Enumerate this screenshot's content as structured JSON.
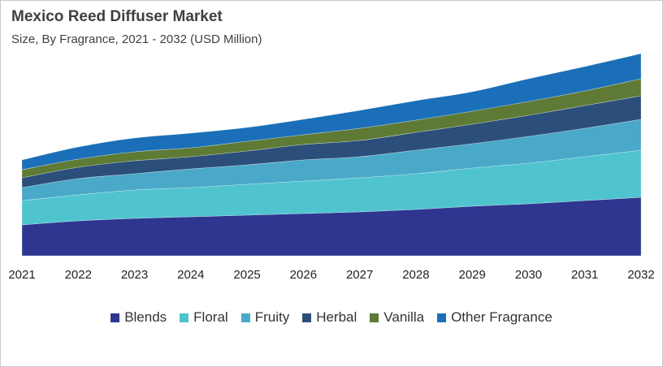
{
  "chart_data": {
    "type": "area",
    "stacked": true,
    "title": "Mexico Reed Diffuser Market",
    "subtitle": "Size, By Fragrance, 2021 - 2032 (USD Million)",
    "xlabel": "",
    "ylabel": "",
    "y_axis_shown": false,
    "grid": false,
    "legend_position": "bottom",
    "categories": [
      "2021",
      "2022",
      "2023",
      "2024",
      "2025",
      "2026",
      "2027",
      "2028",
      "2029",
      "2030",
      "2031",
      "2032"
    ],
    "series": [
      {
        "name": "Blends",
        "color": "#2e3690",
        "values": [
          38,
          43,
          46,
          48,
          50,
          52,
          54,
          57,
          61,
          64,
          68,
          72
        ]
      },
      {
        "name": "Floral",
        "color": "#4fc4cf",
        "values": [
          30,
          32,
          35,
          36,
          38,
          40,
          42,
          44,
          47,
          50,
          54,
          58
        ]
      },
      {
        "name": "Fruity",
        "color": "#4aa9c8",
        "values": [
          16,
          20,
          20,
          23,
          24,
          26,
          26,
          29,
          30,
          33,
          35,
          38
        ]
      },
      {
        "name": "Herbal",
        "color": "#2b4f7a",
        "values": [
          12,
          14,
          16,
          15,
          17,
          19,
          20,
          22,
          24,
          26,
          28,
          29
        ]
      },
      {
        "name": "Vanilla",
        "color": "#5e7a35",
        "values": [
          10,
          10,
          11,
          11,
          12,
          12,
          15,
          15,
          16,
          17,
          18,
          21
        ]
      },
      {
        "name": "Other Fragrance",
        "color": "#1a6fb8",
        "values": [
          12,
          15,
          17,
          18,
          17,
          19,
          22,
          24,
          24,
          28,
          30,
          31
        ]
      }
    ]
  }
}
